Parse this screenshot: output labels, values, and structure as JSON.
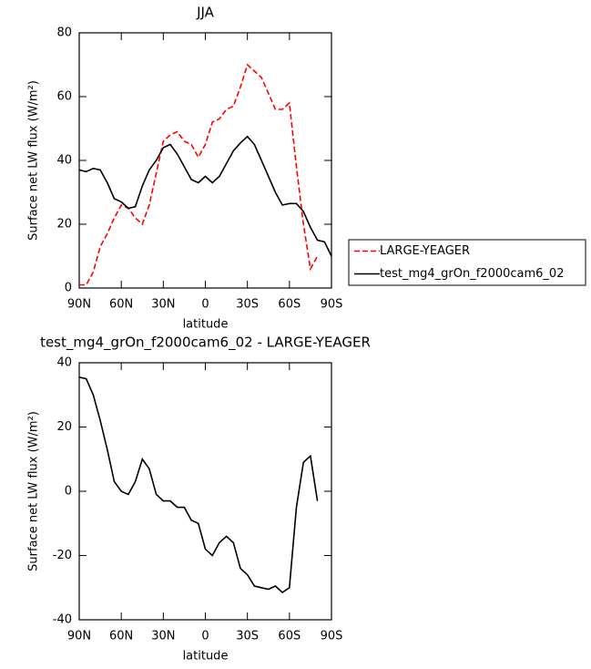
{
  "chart_data": [
    {
      "type": "line",
      "title": "JJA",
      "x_label": "latitude",
      "y_label": "Surface net LW flux (W/m²)",
      "x": [
        90,
        85,
        80,
        75,
        70,
        65,
        60,
        55,
        50,
        45,
        40,
        35,
        30,
        25,
        20,
        15,
        10,
        5,
        0,
        -5,
        -10,
        -15,
        -20,
        -25,
        -30,
        -35,
        -40,
        -45,
        -50,
        -55,
        -60,
        -65,
        -70,
        -75,
        -80,
        -85,
        -90
      ],
      "xlim": [
        90,
        -90
      ],
      "xticks": [
        {
          "value": 90,
          "label": "90N"
        },
        {
          "value": 60,
          "label": "60N"
        },
        {
          "value": 30,
          "label": "30N"
        },
        0,
        {
          "value": -30,
          "label": "30S"
        },
        {
          "value": -60,
          "label": "60S"
        },
        {
          "value": -90,
          "label": "90S"
        }
      ],
      "ylim": [
        0,
        80
      ],
      "yticks": [
        0,
        20,
        40,
        60,
        80
      ],
      "legend": "right",
      "series": [
        {
          "name": "LARGE-YEAGER",
          "color": "#ff0000",
          "style": "dashed",
          "values": [
            1,
            1,
            5,
            13,
            17,
            22,
            26,
            25,
            22,
            20,
            26,
            36,
            46,
            48,
            49,
            46,
            45,
            41,
            45,
            52,
            53,
            56,
            57,
            63,
            70,
            68,
            66,
            61,
            56,
            56,
            58,
            38,
            20,
            6,
            10,
            null,
            null
          ]
        },
        {
          "name": "test_mg4_grOn_f2000cam6_02",
          "color": "#000000",
          "style": "solid",
          "values": [
            37,
            36.5,
            37.5,
            37,
            33,
            28,
            27,
            25,
            25.5,
            32,
            37,
            40,
            44,
            45,
            42,
            38,
            34,
            33,
            35,
            33,
            35,
            39,
            43,
            45.5,
            47.5,
            45,
            40,
            35,
            30,
            26,
            26.5,
            26.5,
            24,
            19,
            15,
            14.5,
            10
          ]
        }
      ]
    },
    {
      "type": "line",
      "title": "test_mg4_grOn_f2000cam6_02 - LARGE-YEAGER",
      "x_label": "latitude",
      "y_label": "Surface net LW flux (W/m²)",
      "x": [
        90,
        85,
        80,
        75,
        70,
        65,
        60,
        55,
        50,
        45,
        40,
        35,
        30,
        25,
        20,
        15,
        10,
        5,
        0,
        -5,
        -10,
        -15,
        -20,
        -25,
        -30,
        -35,
        -40,
        -45,
        -50,
        -55,
        -60,
        -65,
        -70,
        -75,
        -80,
        -85,
        -90
      ],
      "xlim": [
        90,
        -90
      ],
      "xticks": [
        {
          "value": 90,
          "label": "90N"
        },
        {
          "value": 60,
          "label": "60N"
        },
        {
          "value": 30,
          "label": "30N"
        },
        0,
        {
          "value": -30,
          "label": "30S"
        },
        {
          "value": -60,
          "label": "60S"
        },
        {
          "value": -90,
          "label": "90S"
        }
      ],
      "ylim": [
        -40,
        40
      ],
      "yticks": [
        -40,
        -20,
        0,
        20,
        40
      ],
      "color": "#000000",
      "values": [
        35.5,
        35,
        30,
        22,
        13,
        3,
        0,
        -1,
        3,
        10,
        7,
        -1,
        -3,
        -3,
        -5,
        -5,
        -9,
        -10,
        -18,
        -20,
        -16,
        -14,
        -16,
        -24,
        -26,
        -29.5,
        -30,
        -30.5,
        -29.5,
        -31.5,
        -30,
        -5,
        9,
        11,
        -3,
        null,
        null
      ]
    }
  ]
}
